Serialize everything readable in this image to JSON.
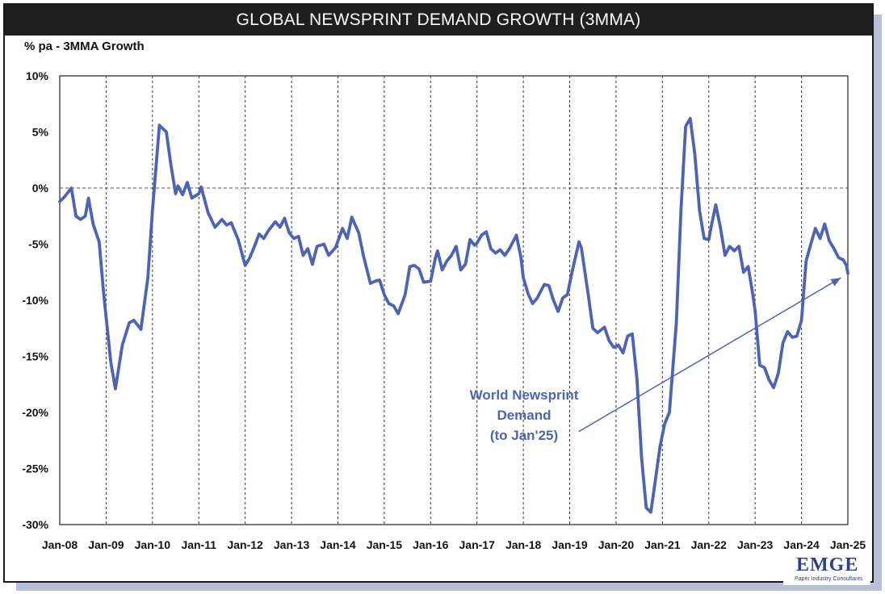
{
  "page": {
    "title": "GLOBAL NEWSPRINT DEMAND GROWTH (3MMA)",
    "logo_text": "EMGE",
    "logo_subtext": "Paper Industry Consultants"
  },
  "chart_data": {
    "type": "line",
    "title": "GLOBAL NEWSPRINT DEMAND GROWTH (3MMA)",
    "ylabel": "% pa - 3MMA Growth",
    "ylim": [
      -30,
      10
    ],
    "y_ticks": [
      10,
      5,
      0,
      -5,
      -10,
      -15,
      -20,
      -25,
      -30
    ],
    "y_tick_labels": [
      "10%",
      "5%",
      "0%",
      "-5%",
      "-10%",
      "-15%",
      "-20%",
      "-25%",
      "-30%"
    ],
    "x_tick_labels": [
      "Jan-08",
      "Jan-09",
      "Jan-10",
      "Jan-11",
      "Jan-12",
      "Jan-13",
      "Jan-14",
      "Jan-15",
      "Jan-16",
      "Jan-17",
      "Jan-18",
      "Jan-19",
      "Jan-20",
      "Jan-21",
      "Jan-22",
      "Jan-23",
      "Jan-24",
      "Jan-25"
    ],
    "x_start": 2008.0,
    "x_end": 2025.0,
    "grid": "vertical dashed at each year; horizontal dashed at 0%",
    "line_color": "#4f63b5",
    "annotation": {
      "lines": [
        "World Newsprint",
        "Demand",
        "(to Jan'25)"
      ],
      "arrow_from": [
        2019.2,
        -21.7
      ],
      "arrow_to": [
        2024.85,
        -8.0
      ]
    },
    "series": [
      {
        "name": "World Newsprint Demand",
        "points": [
          [
            2008.0,
            -1.2
          ],
          [
            2008.1,
            -0.8
          ],
          [
            2008.25,
            0.0
          ],
          [
            2008.35,
            -2.5
          ],
          [
            2008.45,
            -2.8
          ],
          [
            2008.55,
            -2.5
          ],
          [
            2008.62,
            -0.9
          ],
          [
            2008.72,
            -3.2
          ],
          [
            2008.85,
            -4.8
          ],
          [
            2008.95,
            -9.5
          ],
          [
            2009.1,
            -15.5
          ],
          [
            2009.2,
            -17.9
          ],
          [
            2009.35,
            -14.0
          ],
          [
            2009.5,
            -12.0
          ],
          [
            2009.6,
            -11.8
          ],
          [
            2009.75,
            -12.6
          ],
          [
            2009.9,
            -8.0
          ],
          [
            2010.0,
            -2.0
          ],
          [
            2010.15,
            5.6
          ],
          [
            2010.3,
            5.0
          ],
          [
            2010.4,
            2.0
          ],
          [
            2010.5,
            -0.5
          ],
          [
            2010.55,
            0.2
          ],
          [
            2010.65,
            -0.6
          ],
          [
            2010.75,
            0.5
          ],
          [
            2010.85,
            -0.9
          ],
          [
            2011.0,
            -0.5
          ],
          [
            2011.05,
            0.1
          ],
          [
            2011.2,
            -2.2
          ],
          [
            2011.35,
            -3.5
          ],
          [
            2011.5,
            -2.8
          ],
          [
            2011.6,
            -3.3
          ],
          [
            2011.7,
            -3.1
          ],
          [
            2011.85,
            -4.6
          ],
          [
            2012.0,
            -6.9
          ],
          [
            2012.1,
            -6.2
          ],
          [
            2012.2,
            -5.2
          ],
          [
            2012.3,
            -4.1
          ],
          [
            2012.4,
            -4.5
          ],
          [
            2012.5,
            -3.8
          ],
          [
            2012.65,
            -3.0
          ],
          [
            2012.75,
            -3.5
          ],
          [
            2012.85,
            -2.7
          ],
          [
            2012.95,
            -4.0
          ],
          [
            2013.05,
            -4.5
          ],
          [
            2013.15,
            -4.3
          ],
          [
            2013.25,
            -6.0
          ],
          [
            2013.35,
            -5.4
          ],
          [
            2013.45,
            -6.8
          ],
          [
            2013.55,
            -5.2
          ],
          [
            2013.7,
            -5.0
          ],
          [
            2013.8,
            -6.0
          ],
          [
            2013.95,
            -5.3
          ],
          [
            2014.1,
            -3.6
          ],
          [
            2014.2,
            -4.5
          ],
          [
            2014.3,
            -2.6
          ],
          [
            2014.45,
            -4.0
          ],
          [
            2014.55,
            -6.0
          ],
          [
            2014.7,
            -8.5
          ],
          [
            2014.8,
            -8.3
          ],
          [
            2014.9,
            -8.2
          ],
          [
            2015.0,
            -9.5
          ],
          [
            2015.1,
            -10.3
          ],
          [
            2015.2,
            -10.5
          ],
          [
            2015.3,
            -11.2
          ],
          [
            2015.45,
            -9.5
          ],
          [
            2015.55,
            -7.0
          ],
          [
            2015.65,
            -6.9
          ],
          [
            2015.75,
            -7.2
          ],
          [
            2015.85,
            -8.4
          ],
          [
            2016.0,
            -8.3
          ],
          [
            2016.1,
            -6.3
          ],
          [
            2016.15,
            -5.6
          ],
          [
            2016.25,
            -7.3
          ],
          [
            2016.35,
            -6.5
          ],
          [
            2016.45,
            -6.0
          ],
          [
            2016.55,
            -5.2
          ],
          [
            2016.65,
            -7.3
          ],
          [
            2016.75,
            -6.8
          ],
          [
            2016.85,
            -4.6
          ],
          [
            2016.95,
            -5.1
          ],
          [
            2017.0,
            -4.9
          ],
          [
            2017.1,
            -4.2
          ],
          [
            2017.2,
            -3.9
          ],
          [
            2017.3,
            -5.4
          ],
          [
            2017.4,
            -5.8
          ],
          [
            2017.5,
            -5.5
          ],
          [
            2017.6,
            -6.0
          ],
          [
            2017.7,
            -5.4
          ],
          [
            2017.85,
            -4.2
          ],
          [
            2017.95,
            -6.2
          ],
          [
            2018.0,
            -8.0
          ],
          [
            2018.1,
            -9.4
          ],
          [
            2018.2,
            -10.3
          ],
          [
            2018.3,
            -9.8
          ],
          [
            2018.45,
            -8.6
          ],
          [
            2018.55,
            -8.7
          ],
          [
            2018.65,
            -10.0
          ],
          [
            2018.75,
            -11.0
          ],
          [
            2018.85,
            -9.8
          ],
          [
            2018.95,
            -9.5
          ],
          [
            2019.05,
            -7.5
          ],
          [
            2019.2,
            -4.8
          ],
          [
            2019.25,
            -5.3
          ],
          [
            2019.4,
            -9.5
          ],
          [
            2019.5,
            -12.5
          ],
          [
            2019.6,
            -12.9
          ],
          [
            2019.75,
            -12.4
          ],
          [
            2019.85,
            -13.6
          ],
          [
            2019.95,
            -14.2
          ],
          [
            2020.05,
            -14.0
          ],
          [
            2020.15,
            -14.7
          ],
          [
            2020.25,
            -13.2
          ],
          [
            2020.35,
            -13.0
          ],
          [
            2020.45,
            -17.0
          ],
          [
            2020.55,
            -24.0
          ],
          [
            2020.65,
            -28.5
          ],
          [
            2020.75,
            -28.9
          ],
          [
            2020.85,
            -26.0
          ],
          [
            2020.95,
            -23.0
          ],
          [
            2021.05,
            -21.0
          ],
          [
            2021.15,
            -20.0
          ],
          [
            2021.3,
            -12.0
          ],
          [
            2021.4,
            -2.0
          ],
          [
            2021.5,
            5.5
          ],
          [
            2021.6,
            6.2
          ],
          [
            2021.7,
            3.0
          ],
          [
            2021.8,
            -2.0
          ],
          [
            2021.9,
            -4.5
          ],
          [
            2022.0,
            -4.6
          ],
          [
            2022.05,
            -3.5
          ],
          [
            2022.15,
            -1.5
          ],
          [
            2022.25,
            -3.5
          ],
          [
            2022.35,
            -6.0
          ],
          [
            2022.45,
            -5.2
          ],
          [
            2022.55,
            -5.6
          ],
          [
            2022.65,
            -5.2
          ],
          [
            2022.75,
            -7.5
          ],
          [
            2022.85,
            -7.0
          ],
          [
            2022.95,
            -9.5
          ],
          [
            2023.0,
            -11.0
          ],
          [
            2023.1,
            -15.8
          ],
          [
            2023.2,
            -16.0
          ],
          [
            2023.3,
            -17.1
          ],
          [
            2023.4,
            -17.8
          ],
          [
            2023.5,
            -16.5
          ],
          [
            2023.6,
            -13.8
          ],
          [
            2023.7,
            -12.8
          ],
          [
            2023.8,
            -13.3
          ],
          [
            2023.9,
            -13.2
          ],
          [
            2024.0,
            -11.8
          ],
          [
            2024.1,
            -6.5
          ],
          [
            2024.2,
            -5.0
          ],
          [
            2024.3,
            -3.6
          ],
          [
            2024.4,
            -4.5
          ],
          [
            2024.5,
            -3.2
          ],
          [
            2024.6,
            -4.7
          ],
          [
            2024.7,
            -5.4
          ],
          [
            2024.8,
            -6.2
          ],
          [
            2024.9,
            -6.4
          ],
          [
            2024.97,
            -6.9
          ],
          [
            2025.0,
            -7.6
          ]
        ]
      }
    ]
  }
}
